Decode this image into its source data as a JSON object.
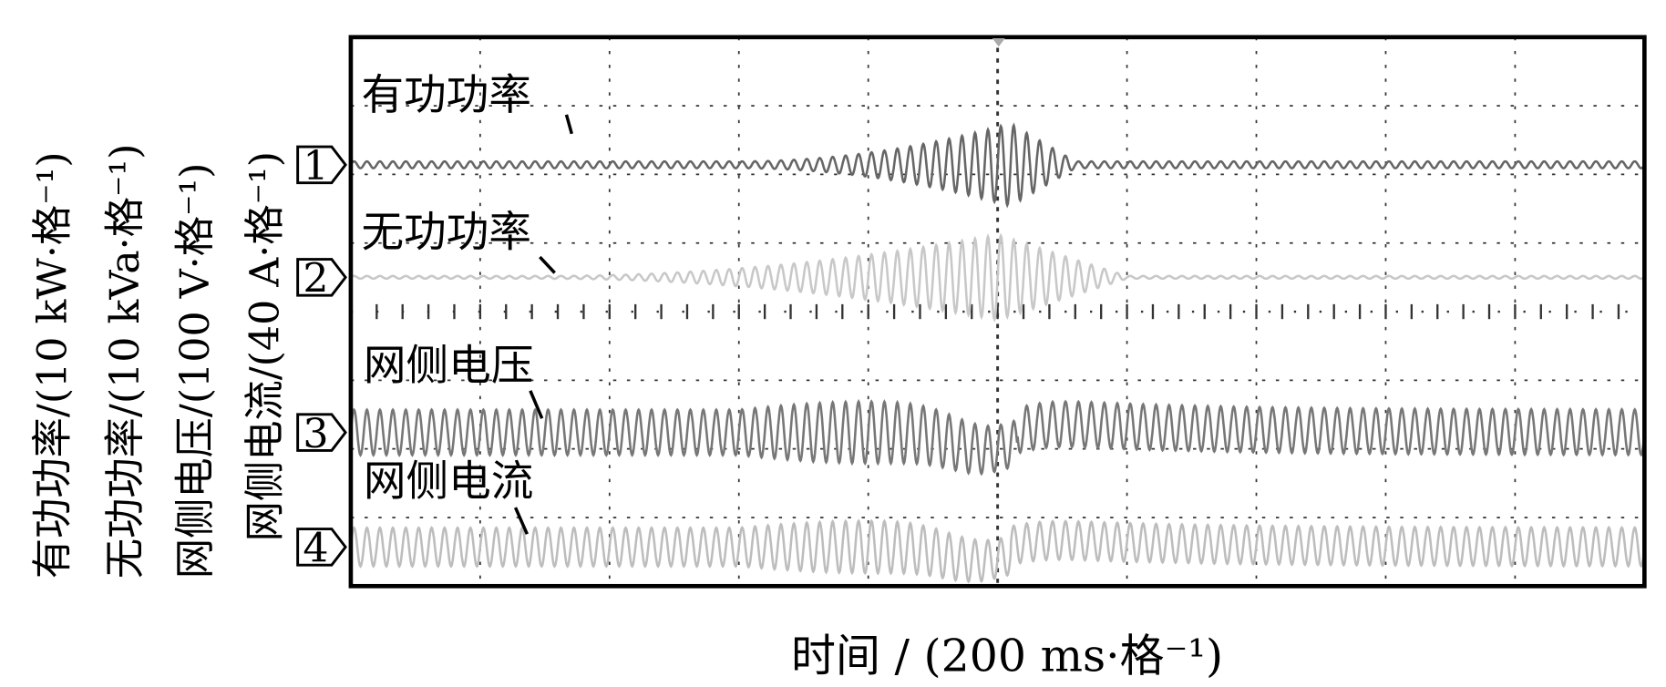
{
  "chart_data": {
    "type": "line",
    "title": "",
    "xlabel": "时间 / (200 ms·格⁻¹)",
    "x_divisions": 10,
    "y_divisions": 8,
    "time_per_division_ms": 200,
    "grid": true,
    "trigger_marker": true,
    "series": [
      {
        "name": "有功功率",
        "marker": "1",
        "ylabel": "有功功率/(10 kW·格⁻¹)",
        "color": "#666666",
        "offset_div": 1.86,
        "steady_amplitude_div": 0.05,
        "disturbance_peak_div": 0.55,
        "disturbance_start_s": 0.6,
        "disturbance_peak_s": 1.02,
        "disturbance_end_s": 1.12,
        "baseline_shift_div": 0
      },
      {
        "name": "无功功率",
        "marker": "2",
        "ylabel": "无功功率/(10 kVa·格⁻¹)",
        "color": "#c8c8c8",
        "offset_div": 3.5,
        "steady_amplitude_div": 0.02,
        "disturbance_peak_div": 0.6,
        "disturbance_start_s": 0.3,
        "disturbance_peak_s": 1.0,
        "disturbance_end_s": 1.2,
        "baseline_shift_div": 0
      },
      {
        "name": "网侧电压",
        "marker": "3",
        "ylabel": "网侧电压/(100 V·格⁻¹)",
        "color": "#777777",
        "offset_div": 5.76,
        "steady_amplitude_div": 0.33,
        "disturbance_peak_div": 0.12,
        "disturbance_start_s": 0.6,
        "disturbance_peak_s": 0.98,
        "disturbance_end_s": 1.1,
        "baseline_shift_div": 0.25
      },
      {
        "name": "网侧电流",
        "marker": "4",
        "ylabel": "网侧电流/(40 A·格⁻¹)",
        "color": "#bdbdbd",
        "offset_div": 7.43,
        "steady_amplitude_div": 0.28,
        "disturbance_peak_div": 0.1,
        "disturbance_start_s": 0.6,
        "disturbance_peak_s": 0.97,
        "disturbance_end_s": 1.3,
        "baseline_shift_div": 0.2
      }
    ]
  }
}
